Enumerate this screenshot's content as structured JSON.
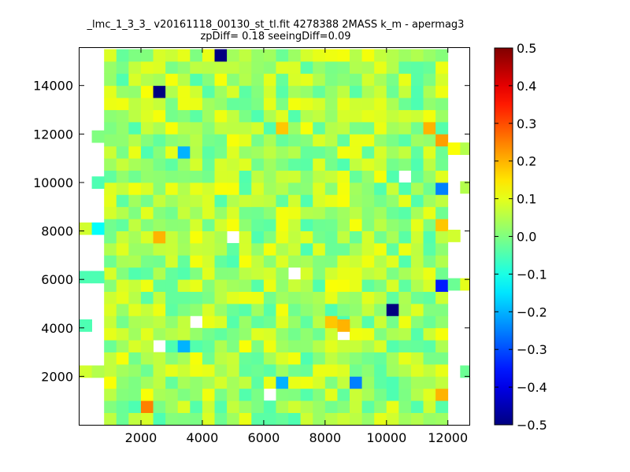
{
  "chart_data": {
    "type": "heatmap",
    "title": [
      "_lmc_1_3_3_ v20161118_00130_st_tl.fit 4278388 2MASS k_m - apermag3",
      "zpDiff= 0.18 seeingDiff=0.09"
    ],
    "xlabel": "",
    "ylabel": "",
    "xlim": [
      0,
      12700
    ],
    "ylim": [
      0,
      15550
    ],
    "xticks": [
      2000,
      4000,
      6000,
      8000,
      10000,
      12000
    ],
    "yticks": [
      2000,
      4000,
      6000,
      8000,
      10000,
      12000,
      14000
    ],
    "colorbar": {
      "colormap": "jet",
      "vmin": -0.5,
      "vmax": 0.5,
      "ticks": [
        "0.5",
        "0.4",
        "0.3",
        "0.2",
        "0.1",
        "0.0",
        "−0.1",
        "−0.2",
        "−0.3",
        "−0.4",
        "−0.5"
      ]
    },
    "grid": false,
    "cell_size_data": [
      400,
      500
    ],
    "cells_x_range": [
      800,
      12000
    ],
    "cells_y_range": [
      0,
      15500
    ],
    "notable_cells": [
      {
        "x": 4600,
        "y": 15300,
        "value": -0.5
      },
      {
        "x": 2600,
        "y": 13900,
        "value": -0.5
      },
      {
        "x": 10200,
        "y": 5200,
        "value": -0.5
      },
      {
        "x": 11800,
        "y": 5800,
        "value": -0.35
      },
      {
        "x": 11800,
        "y": 9800,
        "value": -0.25
      },
      {
        "x": 3400,
        "y": 11400,
        "value": -0.2
      },
      {
        "x": 6600,
        "y": 2200,
        "value": -0.2
      },
      {
        "x": 9000,
        "y": 2200,
        "value": -0.25
      },
      {
        "x": 3400,
        "y": 3400,
        "value": -0.2
      },
      {
        "x": 11400,
        "y": 12500,
        "value": 0.2
      },
      {
        "x": 11800,
        "y": 12100,
        "value": 0.22
      },
      {
        "x": 6800,
        "y": 12500,
        "value": 0.18
      },
      {
        "x": 2800,
        "y": 8100,
        "value": 0.2
      },
      {
        "x": 2200,
        "y": 1200,
        "value": 0.25
      },
      {
        "x": 8200,
        "y": 4500,
        "value": 0.18
      },
      {
        "x": 8600,
        "y": 4100,
        "value": 0.2
      },
      {
        "x": 11800,
        "y": 8500,
        "value": 0.18
      },
      {
        "x": 11800,
        "y": 1600,
        "value": 0.2
      }
    ],
    "edge_cells": [
      {
        "x": 600,
        "y": 11900,
        "value": 0.0
      },
      {
        "x": 600,
        "y": 10000,
        "value": -0.05
      },
      {
        "x": 200,
        "y": 8100,
        "value": 0.08
      },
      {
        "x": 600,
        "y": 8100,
        "value": -0.12
      },
      {
        "x": 200,
        "y": 6100,
        "value": -0.05
      },
      {
        "x": 600,
        "y": 6100,
        "value": -0.05
      },
      {
        "x": 200,
        "y": 4100,
        "value": -0.05
      },
      {
        "x": 200,
        "y": 2200,
        "value": 0.08
      },
      {
        "x": 600,
        "y": 2200,
        "value": 0.05
      },
      {
        "x": 12200,
        "y": 11400,
        "value": 0.12
      },
      {
        "x": 12600,
        "y": 11400,
        "value": 0.05
      },
      {
        "x": 12600,
        "y": 9800,
        "value": 0.05
      },
      {
        "x": 12200,
        "y": 7800,
        "value": 0.08
      },
      {
        "x": 12200,
        "y": 5800,
        "value": -0.02
      },
      {
        "x": 12600,
        "y": 5800,
        "value": 0.1
      },
      {
        "x": 12600,
        "y": 2200,
        "value": -0.02
      }
    ],
    "empty_cells": [
      {
        "x": 5000,
        "y": 7800
      },
      {
        "x": 7000,
        "y": 6600
      },
      {
        "x": 10800,
        "y": 10300
      },
      {
        "x": 3800,
        "y": 4700
      },
      {
        "x": 8800,
        "y": 4100
      },
      {
        "x": 2600,
        "y": 3600
      },
      {
        "x": 6200,
        "y": 1700
      }
    ]
  }
}
